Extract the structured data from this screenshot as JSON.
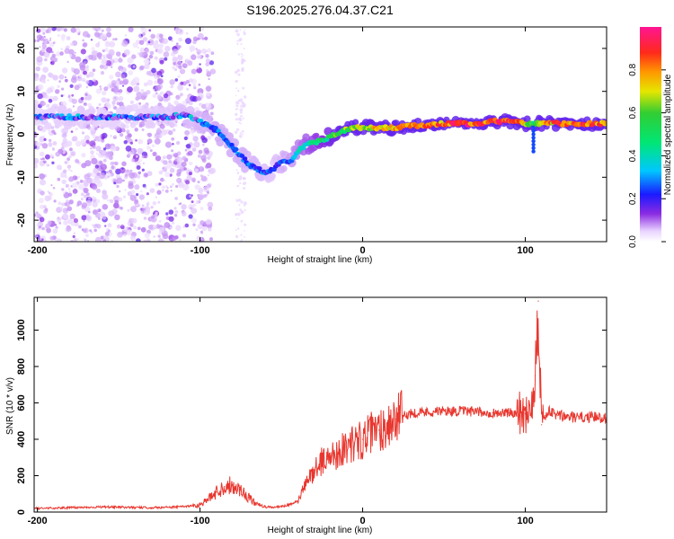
{
  "title": "S196.2025.276.04.37.C21",
  "chart_data": [
    {
      "type": "heatmap",
      "xlabel": "Height of straight line (km)",
      "ylabel": "Frequency (Hz)",
      "xlim": [
        -202,
        150
      ],
      "ylim": [
        -25,
        25
      ],
      "xticks": [
        -200,
        -100,
        0,
        100
      ],
      "yticks": [
        -20,
        -10,
        0,
        10,
        20
      ],
      "colorbar": {
        "label": "Normalized spectral amplitude",
        "range": [
          0,
          1
        ],
        "ticks": [
          "0.0",
          "0.2",
          "0.4",
          "0.6",
          "0.8"
        ]
      },
      "ridge": {
        "description": "frequency peak of the signal versus height",
        "x": [
          -200,
          -180,
          -160,
          -140,
          -120,
          -110,
          -100,
          -90,
          -80,
          -70,
          -60,
          -55,
          -50,
          -45,
          -40,
          -35,
          -30,
          -25,
          -20,
          -15,
          -10,
          -5,
          0,
          10,
          20,
          30,
          40,
          50,
          60,
          70,
          80,
          90,
          100,
          105,
          110,
          120,
          130,
          140,
          150
        ],
        "frequency": [
          4,
          4,
          4,
          4,
          4,
          4.5,
          3,
          1,
          -3,
          -7,
          -9,
          -8,
          -6.5,
          -6.5,
          -4,
          -2.5,
          -2,
          -1.5,
          -0.5,
          0.5,
          1,
          1.5,
          1.5,
          1.5,
          1.5,
          2,
          2,
          2.5,
          2.5,
          2.5,
          3,
          3,
          2.5,
          2.5,
          2.5,
          2.5,
          2.5,
          2.5,
          2.5
        ],
        "amplitude": [
          0.18,
          0.22,
          0.2,
          0.2,
          0.22,
          0.24,
          0.26,
          0.28,
          0.28,
          0.26,
          0.24,
          0.22,
          0.26,
          0.3,
          0.36,
          0.42,
          0.48,
          0.52,
          0.58,
          0.62,
          0.66,
          0.7,
          0.72,
          0.78,
          0.84,
          0.86,
          0.88,
          0.92,
          0.95,
          0.95,
          0.94,
          0.92,
          0.8,
          0.55,
          0.78,
          0.88,
          0.9,
          0.88,
          0.86
        ]
      }
    },
    {
      "type": "line",
      "xlabel": "Height of straight line (km)",
      "ylabel": "SNR (10 * v/v)",
      "xlim": [
        -202,
        150
      ],
      "ylim": [
        0,
        1180
      ],
      "xticks": [
        -200,
        -100,
        0,
        100
      ],
      "yticks": [
        0,
        200,
        400,
        600,
        800,
        1000
      ],
      "series": [
        {
          "name": "SNR",
          "color": "#e8372f",
          "x": [
            -202,
            -190,
            -180,
            -170,
            -160,
            -150,
            -140,
            -130,
            -120,
            -110,
            -100,
            -95,
            -90,
            -85,
            -80,
            -75,
            -70,
            -65,
            -60,
            -55,
            -50,
            -45,
            -40,
            -35,
            -30,
            -25,
            -20,
            -15,
            -10,
            -5,
            0,
            5,
            10,
            15,
            20,
            25,
            30,
            40,
            50,
            60,
            70,
            80,
            90,
            95,
            100,
            104,
            106,
            108,
            110,
            112,
            115,
            120,
            130,
            140,
            150
          ],
          "y": [
            20,
            22,
            24,
            26,
            28,
            27,
            25,
            24,
            26,
            30,
            40,
            70,
            110,
            140,
            150,
            120,
            80,
            40,
            28,
            26,
            30,
            40,
            60,
            150,
            230,
            280,
            300,
            330,
            360,
            380,
            400,
            430,
            450,
            480,
            510,
            530,
            545,
            550,
            555,
            555,
            550,
            545,
            545,
            550,
            540,
            600,
            750,
            1160,
            480,
            530,
            550,
            530,
            520,
            520,
            520
          ]
        }
      ]
    }
  ]
}
